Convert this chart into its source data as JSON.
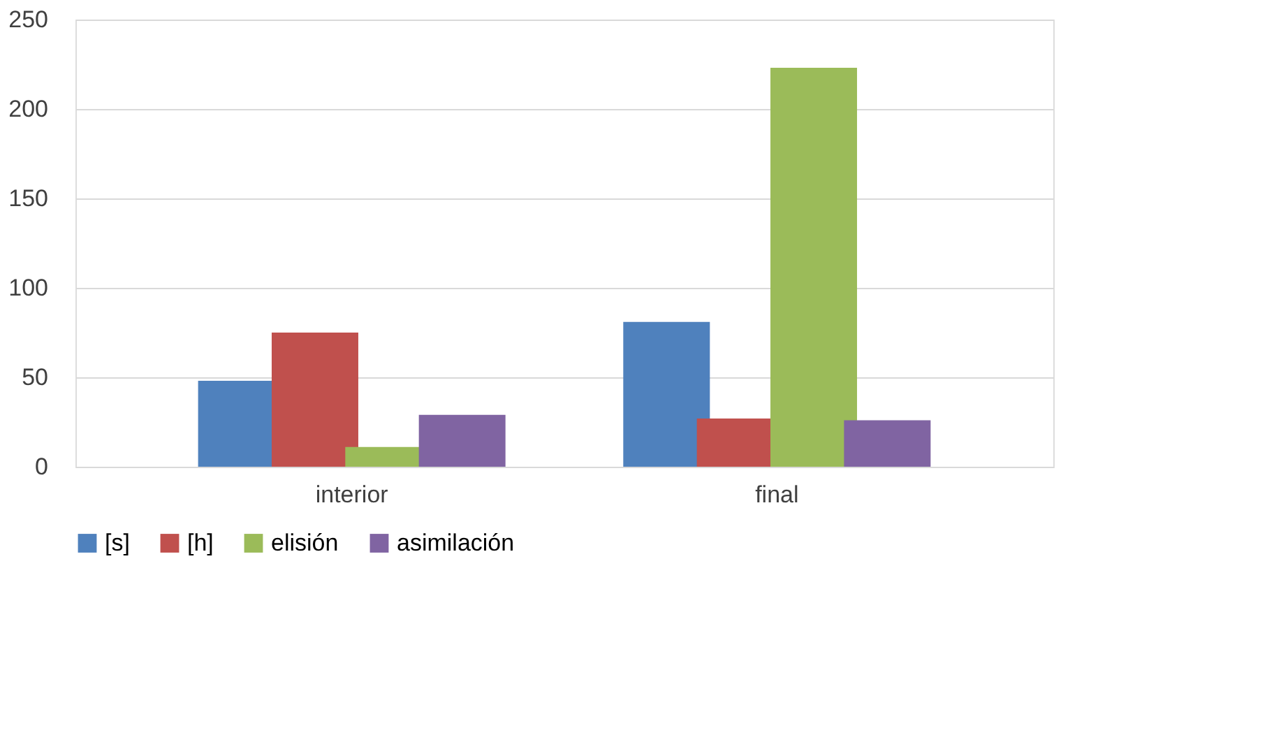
{
  "chart_data": {
    "type": "bar",
    "categories": [
      "interior",
      "final"
    ],
    "series": [
      {
        "name": "[s]",
        "color": "#4f81bd",
        "values": [
          48,
          81
        ]
      },
      {
        "name": "[h]",
        "color": "#c0504d",
        "values": [
          75,
          27
        ]
      },
      {
        "name": "elisión",
        "color": "#9bbb59",
        "values": [
          11,
          223
        ]
      },
      {
        "name": "asimilación",
        "color": "#8064a2",
        "values": [
          29,
          26
        ]
      }
    ],
    "ylim": [
      0,
      250
    ],
    "yticks": [
      0,
      50,
      100,
      150,
      200,
      250
    ],
    "grid": "y",
    "legend": "bottom"
  }
}
